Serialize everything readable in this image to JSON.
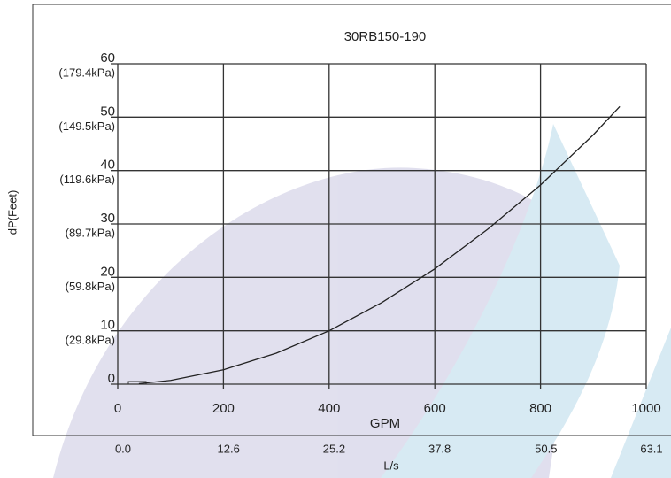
{
  "chart_data": {
    "type": "line",
    "title": "30RB150-190",
    "x_label": "GPM",
    "y_label": "dP(Feet)",
    "x2_label": "L/s",
    "x": [
      40,
      100,
      200,
      300,
      400,
      500,
      600,
      700,
      800,
      900,
      950
    ],
    "series": [
      {
        "name": "30RB150-190",
        "color": "#222222",
        "values": [
          0.1,
          0.7,
          2.7,
          5.8,
          10,
          15.3,
          21.6,
          29,
          37.3,
          46.7,
          52
        ]
      }
    ],
    "xlim": [
      0,
      1000
    ],
    "xticks": [
      0,
      200,
      400,
      600,
      800,
      1000
    ],
    "ylim": [
      0,
      60
    ],
    "yticks": [
      0,
      10,
      20,
      30,
      40,
      50,
      60
    ],
    "x2lim": [
      0,
      63.1
    ],
    "x2ticks": [
      {
        "value": 0,
        "label": "0.0"
      },
      12.6,
      25.2,
      37.8,
      50.5,
      63.1
    ],
    "y2lim": [
      0,
      179.4
    ],
    "y2ticks": [
      {
        "value": 29.8,
        "label": "(29.8kPa)"
      },
      {
        "value": 59.8,
        "label": "(59.8kPa)"
      },
      {
        "value": 89.7,
        "label": "(89.7kPa)"
      },
      {
        "value": 119.6,
        "label": "(119.6kPa)"
      },
      {
        "value": 149.5,
        "label": "(149.5kPa)"
      },
      {
        "value": 179.4,
        "label": "(179.4kPa)"
      }
    ],
    "grid": true
  }
}
